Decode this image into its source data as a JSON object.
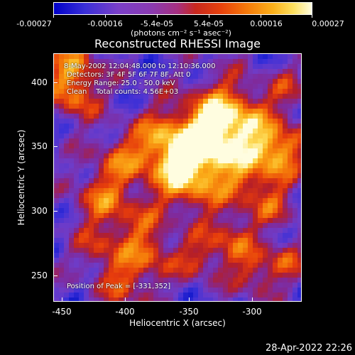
{
  "colorbar": {
    "labels": [
      "-0.00027",
      "-0.00016",
      "-5.4e-05",
      "5.4e-05",
      "0.00016",
      "0.00027"
    ],
    "units": "(photons cm⁻² s⁻¹ asec⁻²)"
  },
  "title": "Reconstructed RHESSI Image",
  "annotations": {
    "line1": "8-May-2002 12:04:48.000 to 12:10:36.000",
    "line2": "Detectors: 3F 4F 5F 6F 7F 8F, Att 0",
    "line3": "Energy Range: 25.0 - 50.0 keV",
    "line4": "Clean    Total counts: 4.56E+03",
    "peak": "Position of Peak = [-331,352]"
  },
  "axes": {
    "xlabel": "Heliocentric X (arcsec)",
    "ylabel": "Heliocentric Y (arcsec)",
    "xticks": [
      "-450",
      "-400",
      "-350",
      "-300"
    ],
    "yticks": [
      "400",
      "350",
      "300",
      "250"
    ]
  },
  "timestamp": "28-Apr-2022 22:26"
}
